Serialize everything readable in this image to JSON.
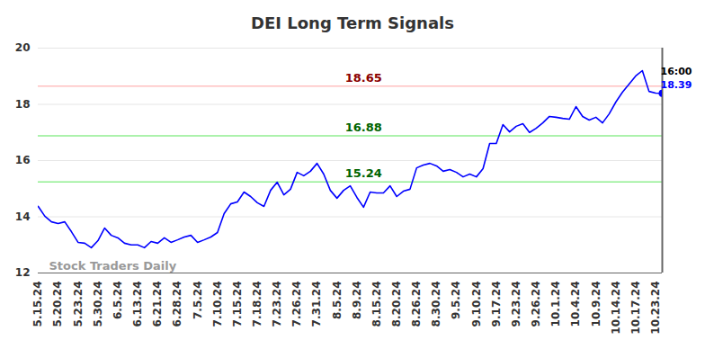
{
  "chart_data": {
    "type": "line",
    "title": "DEI Long Term Signals",
    "categories": [
      "5.15.24",
      null,
      null,
      "5.20.24",
      null,
      null,
      "5.23.24",
      null,
      null,
      "5.30.24",
      null,
      null,
      "6.5.24",
      null,
      null,
      "6.13.24",
      null,
      null,
      "6.21.24",
      null,
      null,
      "6.28.24",
      null,
      null,
      "7.5.24",
      null,
      null,
      "7.10.24",
      null,
      null,
      "7.15.24",
      null,
      null,
      "7.18.24",
      null,
      null,
      "7.23.24",
      null,
      null,
      "7.26.24",
      null,
      null,
      "7.31.24",
      null,
      null,
      "8.5.24",
      null,
      null,
      "8.9.24",
      null,
      null,
      "8.15.24",
      null,
      null,
      "8.20.24",
      null,
      null,
      "8.26.24",
      null,
      null,
      "8.30.24",
      null,
      null,
      "9.5.24",
      null,
      null,
      "9.10.24",
      null,
      null,
      "9.17.24",
      null,
      null,
      "9.23.24",
      null,
      null,
      "9.26.24",
      null,
      null,
      "10.1.24",
      null,
      null,
      "10.4.24",
      null,
      null,
      "10.9.24",
      null,
      null,
      "10.14.24",
      null,
      null,
      "10.17.24",
      null,
      null,
      "10.23.24",
      null
    ],
    "values": [
      14.37,
      14.02,
      13.82,
      13.76,
      13.82,
      13.47,
      13.09,
      13.06,
      12.9,
      13.15,
      13.6,
      13.34,
      13.25,
      13.06,
      13.0,
      13.0,
      12.9,
      13.12,
      13.06,
      13.25,
      13.09,
      13.18,
      13.28,
      13.34,
      13.09,
      13.18,
      13.28,
      13.44,
      14.11,
      14.46,
      14.53,
      14.88,
      14.72,
      14.5,
      14.37,
      14.94,
      15.23,
      14.78,
      14.98,
      15.58,
      15.46,
      15.62,
      15.9,
      15.52,
      14.94,
      14.66,
      14.94,
      15.1,
      14.69,
      14.34,
      14.88,
      14.85,
      14.85,
      15.1,
      14.72,
      14.91,
      14.98,
      15.74,
      15.84,
      15.9,
      15.81,
      15.62,
      15.68,
      15.58,
      15.42,
      15.52,
      15.42,
      15.71,
      16.61,
      16.61,
      17.28,
      17.02,
      17.22,
      17.31,
      17.0,
      17.15,
      17.34,
      17.57,
      17.54,
      17.5,
      17.47,
      17.92,
      17.57,
      17.44,
      17.54,
      17.34,
      17.66,
      18.08,
      18.43,
      18.72,
      19.01,
      19.2,
      18.46,
      18.4,
      18.39
    ],
    "color": "#0000ff",
    "ylim": [
      12,
      20
    ],
    "yticks": [
      12,
      14,
      16,
      18,
      20
    ],
    "grid": true,
    "reference_lines": [
      {
        "value": 18.65,
        "color": "#8b0000"
      },
      {
        "value": 16.88,
        "color": "#006400"
      },
      {
        "value": 15.24,
        "color": "#006400"
      }
    ],
    "last_time_label": "16:00",
    "watermark": "Stock Traders Daily"
  }
}
